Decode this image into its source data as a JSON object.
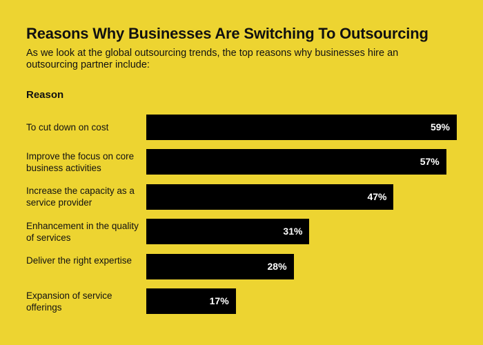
{
  "chart_data": {
    "type": "bar",
    "orientation": "horizontal",
    "title": "Reasons Why Businesses Are Switching To Outsourcing",
    "subtitle": "As we look at the global outsourcing trends, the top reasons why businesses hire an outsourcing partner include:",
    "category_header": "Reason",
    "categories": [
      "To cut down on cost",
      "Improve the focus on core business activities",
      "Increase the capacity as a service provider",
      "Enhancement in the quality of services",
      "Deliver the right expertise",
      "Expansion of service offerings"
    ],
    "values": [
      59,
      57,
      47,
      31,
      28,
      17
    ],
    "value_labels": [
      "59%",
      "57%",
      "47%",
      "31%",
      "28%",
      "17%"
    ],
    "xlim": [
      0,
      59
    ],
    "grid": false,
    "colors": {
      "background": "#EDD431",
      "bar": "#000000",
      "bar_label": "#FFFFFF"
    }
  }
}
